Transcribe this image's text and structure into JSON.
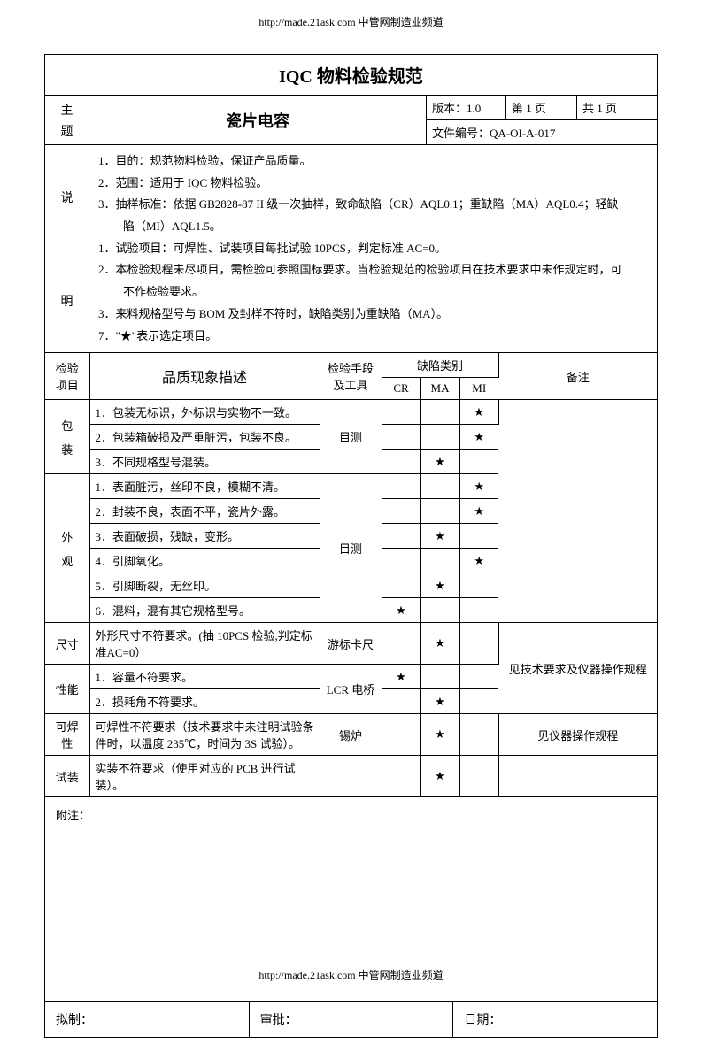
{
  "header": {
    "url": "http://made.21ask.com  中管网制造业频道"
  },
  "footer": {
    "url": "http://made.21ask.com  中管网制造业频道"
  },
  "document": {
    "title": "IQC 物料检验规范",
    "subject_label_1": "主",
    "subject_label_2": "题",
    "subject_content": "瓷片电容",
    "version_label": "版本：",
    "version_value": "1.0",
    "page_label": "第 1 页",
    "total_pages": "共 1 页",
    "doc_no_label": "文件编号：",
    "doc_no_value": "QA-OI-A-017"
  },
  "description": {
    "label_1": "说",
    "label_2": "明",
    "items": [
      "1．目的：规范物料检验，保证产品质量。",
      "2．范围：适用于 IQC 物料检验。",
      "3．抽样标准：依据 GB2828-87 II 级一次抽样，致命缺陷（CR）AQL0.1；重缺陷（MA）AQL0.4；轻缺",
      "陷（MI）AQL1.5。",
      "1．试验项目：可焊性、试装项目每批试验 10PCS，判定标准 AC=0。",
      "2．本检验规程未尽项目，需检验可参照国标要求。当检验规范的检验项目在技术要求中未作规定时，可",
      "不作检验要求。",
      "3．来料规格型号与 BOM 及封样不符时，缺陷类别为重缺陷（MA）。",
      "7．\"★\"表示选定项目。"
    ]
  },
  "table": {
    "headers": {
      "item": "检验项目",
      "desc": "品质现象描述",
      "method": "检验手段及工具",
      "defect_group": "缺陷类别",
      "cr": "CR",
      "ma": "MA",
      "mi": "MI",
      "remark": "备注"
    },
    "star": "★",
    "groups": [
      {
        "label_1": "包",
        "label_2": "装",
        "method": "目测",
        "rows": [
          {
            "desc": "1．包装无标识，外标识与实物不一致。",
            "cr": "",
            "ma": "",
            "mi": "★"
          },
          {
            "desc": "2．包装箱破损及严重脏污，包装不良。",
            "cr": "",
            "ma": "",
            "mi": "★"
          },
          {
            "desc": "3．不同规格型号混装。",
            "cr": "",
            "ma": "★",
            "mi": ""
          }
        ],
        "remark": ""
      },
      {
        "label_1": "外",
        "label_2": "观",
        "method": "目测",
        "rows": [
          {
            "desc": "1．表面脏污，丝印不良，模糊不清。",
            "cr": "",
            "ma": "",
            "mi": "★"
          },
          {
            "desc": "2．封装不良，表面不平，瓷片外露。",
            "cr": "",
            "ma": "",
            "mi": "★"
          },
          {
            "desc": "3．表面破损，残缺，变形。",
            "cr": "",
            "ma": "★",
            "mi": ""
          },
          {
            "desc": "4．引脚氧化。",
            "cr": "",
            "ma": "",
            "mi": "★"
          },
          {
            "desc": "5．引脚断裂，无丝印。",
            "cr": "",
            "ma": "★",
            "mi": ""
          },
          {
            "desc": "6．混料，混有其它规格型号。",
            "cr": "★",
            "ma": "",
            "mi": ""
          }
        ],
        "remark": ""
      }
    ],
    "singles": [
      {
        "item": "尺寸",
        "desc": "外形尺寸不符要求。(抽 10PCS 检验,判定标准AC=0）",
        "method": "游标卡尺",
        "cr": "",
        "ma": "★",
        "mi": ""
      },
      {
        "item": "性能",
        "rows": [
          {
            "desc": "1．容量不符要求。",
            "cr": "★",
            "ma": "",
            "mi": ""
          },
          {
            "desc": "2．损耗角不符要求。",
            "cr": "",
            "ma": "★",
            "mi": ""
          }
        ],
        "method": "LCR 电桥"
      },
      {
        "item": "可焊性",
        "desc": "可焊性不符要求（技术要求中未注明试验条件时，以温度 235℃，时间为 3S 试验）。",
        "method": "锡炉",
        "cr": "",
        "ma": "★",
        "mi": "",
        "remark": "见仪器操作规程"
      },
      {
        "item": "试装",
        "desc": "实装不符要求（使用对应的 PCB 进行试装）。",
        "method": "",
        "cr": "",
        "ma": "★",
        "mi": "",
        "remark": ""
      }
    ],
    "merged_remark": "见技术要求及仪器操作规程"
  },
  "appendix_label": "附注：",
  "signatures": {
    "drafted": "拟制：",
    "approved": "审批：",
    "date": "日期："
  }
}
